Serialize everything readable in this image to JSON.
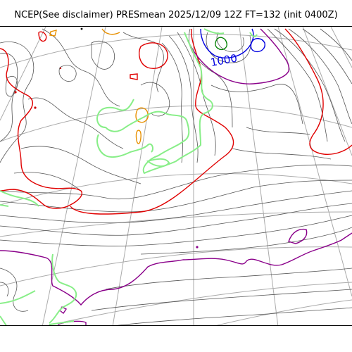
{
  "title": "NCEP(See disclaimer) PRESmean 2025/12/09 12Z FT=132 (init 0400Z)",
  "map": {
    "isobar_label": "1000",
    "colors": {
      "isobar": "#555555",
      "contour_red": "#e00000",
      "contour_purple": "#8a008a",
      "contour_blue": "#0000e0",
      "contour_green": "#008000",
      "contour_orange": "#e89000",
      "coastline": "#88ee88",
      "grid": "#aaaaaa",
      "land_dot": "#cc0000"
    }
  }
}
